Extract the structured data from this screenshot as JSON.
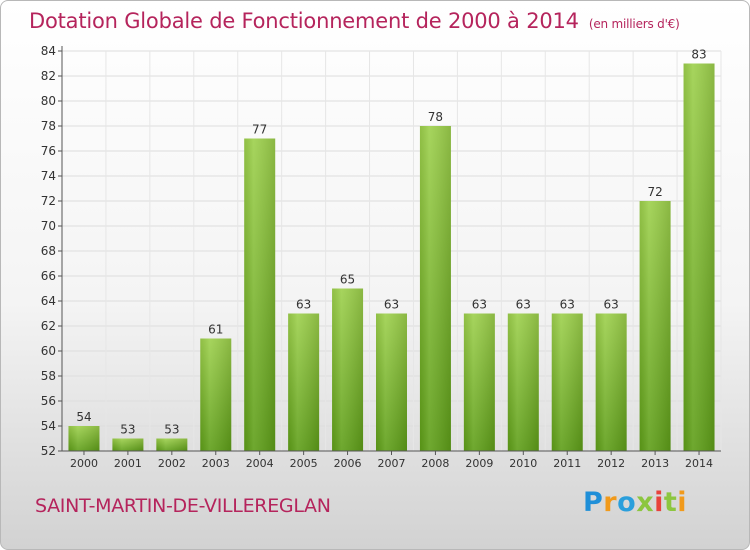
{
  "title": "Dotation Globale de Fonctionnement de 2000 à 2014",
  "unit_note": "(en milliers d'€)",
  "commune": "SAINT-MARTIN-DE-VILLEREGLAN",
  "logo": {
    "p": "P",
    "r": "r",
    "o": "o",
    "x": "x",
    "i1": "i",
    "t": "t",
    "i2": "i"
  },
  "colors": {
    "bar_top": "#9dd04c",
    "bar_bottom": "#5e9e18",
    "title": "#b5245c"
  },
  "chart_data": {
    "type": "bar",
    "categories": [
      "2000",
      "2001",
      "2002",
      "2003",
      "2004",
      "2005",
      "2006",
      "2007",
      "2008",
      "2009",
      "2010",
      "2011",
      "2012",
      "2013",
      "2014"
    ],
    "values": [
      54,
      53,
      53,
      61,
      77,
      63,
      65,
      63,
      78,
      63,
      63,
      63,
      63,
      72,
      83
    ],
    "ylim": [
      52,
      84
    ],
    "yticks": [
      52,
      54,
      56,
      58,
      60,
      62,
      64,
      66,
      68,
      70,
      72,
      74,
      76,
      78,
      80,
      82,
      84
    ],
    "grid": true,
    "legend": "none"
  }
}
